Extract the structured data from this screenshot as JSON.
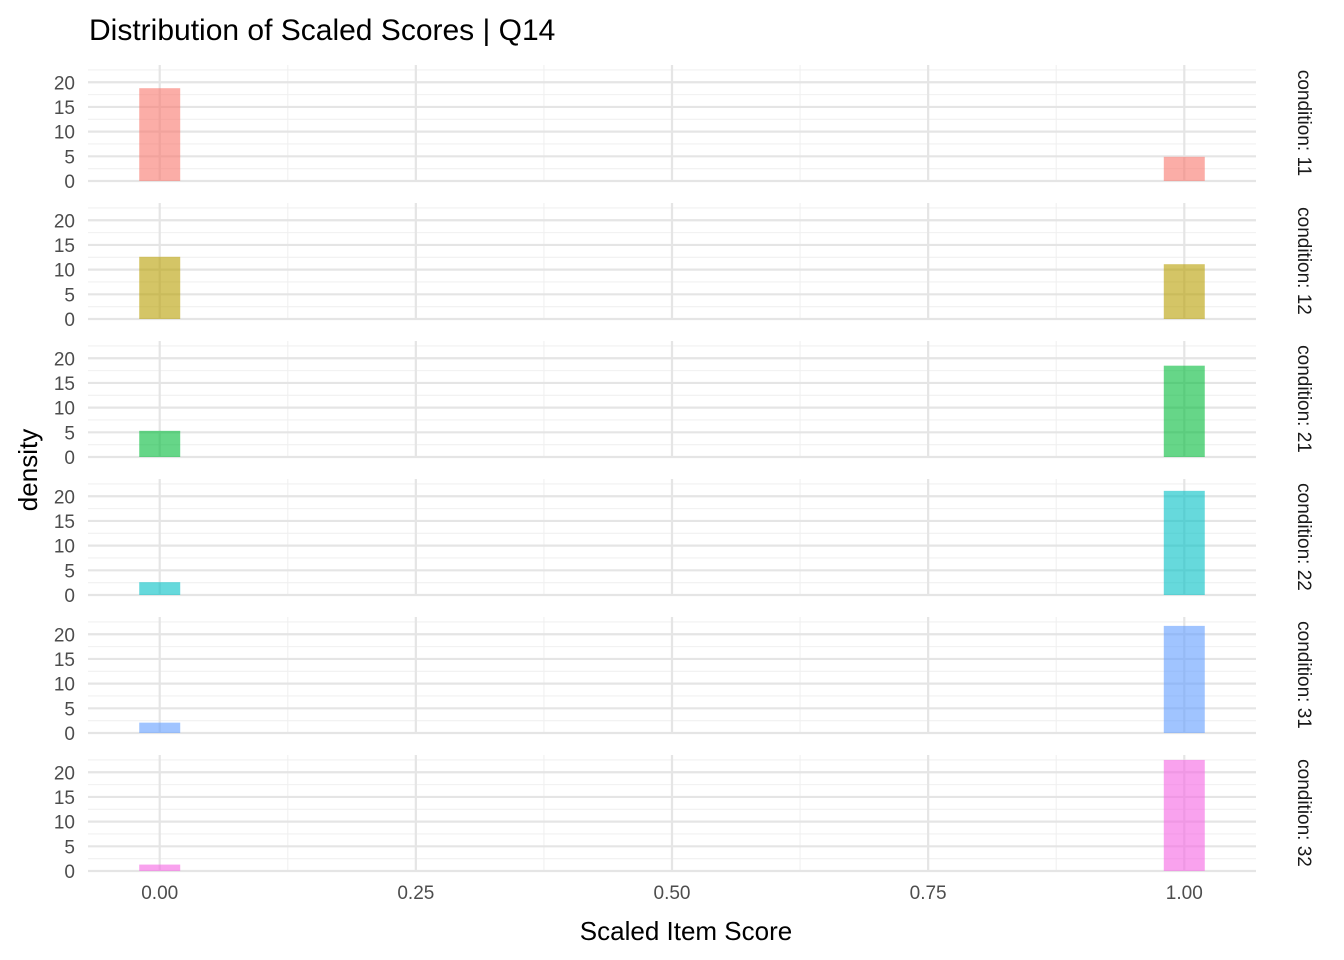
{
  "chart_data": {
    "type": "bar",
    "title": "Distribution of Scaled Scores | Q14",
    "xlabel": "Scaled Item Score",
    "ylabel": "density",
    "xlim": [
      -0.07,
      1.07
    ],
    "ylim": [
      0,
      23.5
    ],
    "x_ticks": [
      0.0,
      0.25,
      0.5,
      0.75,
      1.0
    ],
    "x_tick_labels": [
      "0.00",
      "0.25",
      "0.50",
      "0.75",
      "1.00"
    ],
    "y_ticks": [
      0,
      5,
      10,
      15,
      20
    ],
    "y_tick_labels": [
      "0",
      "5",
      "10",
      "15",
      "20"
    ],
    "grid": true,
    "legend": "none",
    "bin_width": 0.04,
    "panels": [
      {
        "strip": "condition: 11",
        "color": "#F8766D",
        "x": [
          0.0,
          1.0
        ],
        "values": [
          18.8,
          4.9
        ]
      },
      {
        "strip": "condition: 12",
        "color": "#B79F00",
        "x": [
          0.0,
          1.0
        ],
        "values": [
          12.6,
          11.1
        ]
      },
      {
        "strip": "condition: 21",
        "color": "#00BA38",
        "x": [
          0.0,
          1.0
        ],
        "values": [
          5.3,
          18.5
        ]
      },
      {
        "strip": "condition: 22",
        "color": "#00BFC4",
        "x": [
          0.0,
          1.0
        ],
        "values": [
          2.6,
          21.1
        ]
      },
      {
        "strip": "condition: 31",
        "color": "#619CFF",
        "x": [
          0.0,
          1.0
        ],
        "values": [
          2.1,
          21.7
        ]
      },
      {
        "strip": "condition: 32",
        "color": "#F564E3",
        "x": [
          0.0,
          1.0
        ],
        "values": [
          1.3,
          22.5
        ]
      }
    ]
  }
}
